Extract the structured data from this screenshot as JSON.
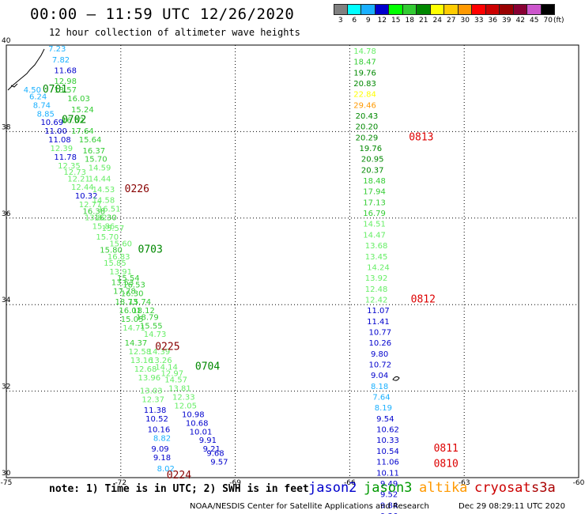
{
  "header": {
    "title": "00:00 – 11:59 UTC 12/26/2020",
    "subtitle": "12 hour collection of altimeter wave heights"
  },
  "legend": {
    "colors": [
      "#808080",
      "#00ffff",
      "#1ab0ff",
      "#0000cd",
      "#00ff00",
      "#33cc33",
      "#008800",
      "#ffff00",
      "#ffcc00",
      "#ff9900",
      "#ff0000",
      "#cc0000",
      "#990000",
      "#880033",
      "#cc55cc",
      "#000000"
    ],
    "labels": [
      "3",
      "6",
      "9",
      "12",
      "15",
      "18",
      "21",
      "24",
      "27",
      "30",
      "33",
      "36",
      "39",
      "42",
      "45",
      "70"
    ],
    "unit": "(ft)"
  },
  "map": {
    "lon_min": -75,
    "lon_max": -60,
    "lat_min": 30,
    "lat_max": 40,
    "x_ticks": [
      {
        "lon": -75,
        "label": "-75"
      },
      {
        "lon": -72,
        "label": "-72"
      },
      {
        "lon": -69,
        "label": "-69"
      },
      {
        "lon": -66,
        "label": "-66"
      },
      {
        "lon": -63,
        "label": "-63"
      },
      {
        "lon": -60,
        "label": "-60"
      }
    ],
    "y_ticks": [
      {
        "lat": 40,
        "label": "40"
      },
      {
        "lat": 38,
        "label": "38"
      },
      {
        "lat": 36,
        "label": "36"
      },
      {
        "lat": 34,
        "label": "34"
      },
      {
        "lat": 32,
        "label": "32"
      },
      {
        "lat": 30,
        "label": "30"
      }
    ],
    "time_labels": [
      {
        "text": "0701",
        "lon": -74.05,
        "lat": 38.9,
        "color": "#008800"
      },
      {
        "text": "0702",
        "lon": -73.55,
        "lat": 38.2,
        "color": "#008800"
      },
      {
        "text": "0226",
        "lon": -71.9,
        "lat": 36.6,
        "color": "#880000"
      },
      {
        "text": "0703",
        "lon": -71.55,
        "lat": 35.2,
        "color": "#008800"
      },
      {
        "text": "0225",
        "lon": -71.1,
        "lat": 32.95,
        "color": "#880000"
      },
      {
        "text": "0704",
        "lon": -70.05,
        "lat": 32.5,
        "color": "#008800"
      },
      {
        "text": "0224",
        "lon": -70.8,
        "lat": 29.98,
        "color": "#880000"
      },
      {
        "text": "0813",
        "lon": -64.45,
        "lat": 37.8,
        "color": "#dd0000"
      },
      {
        "text": "0812",
        "lon": -64.4,
        "lat": 34.05,
        "color": "#dd0000"
      },
      {
        "text": "0811",
        "lon": -63.8,
        "lat": 30.6,
        "color": "#dd0000"
      },
      {
        "text": "0810",
        "lon": -63.8,
        "lat": 30.25,
        "color": "#dd0000"
      }
    ]
  },
  "tracks": [
    {
      "name": "west",
      "points": [
        {
          "v": "7.23",
          "lon": -73.9,
          "lat": 39.85,
          "c": "#1ab0ff"
        },
        {
          "v": "7.82",
          "lon": -73.8,
          "lat": 39.6,
          "c": "#1ab0ff"
        },
        {
          "v": "11.68",
          "lon": -73.75,
          "lat": 39.35,
          "c": "#0000cd"
        },
        {
          "v": "12.98",
          "lon": -73.75,
          "lat": 39.1,
          "c": "#33cc33"
        },
        {
          "v": "4.50",
          "lon": -74.55,
          "lat": 38.9,
          "c": "#1ab0ff"
        },
        {
          "v": "6.24",
          "lon": -74.4,
          "lat": 38.75,
          "c": "#1ab0ff"
        },
        {
          "v": "13.57",
          "lon": -73.75,
          "lat": 38.9,
          "c": "#33cc33"
        },
        {
          "v": "16.03",
          "lon": -73.4,
          "lat": 38.7,
          "c": "#33cc33"
        },
        {
          "v": "8.74",
          "lon": -74.3,
          "lat": 38.55,
          "c": "#1ab0ff"
        },
        {
          "v": "8.85",
          "lon": -74.2,
          "lat": 38.35,
          "c": "#1ab0ff"
        },
        {
          "v": "15.24",
          "lon": -73.3,
          "lat": 38.45,
          "c": "#33cc33"
        },
        {
          "v": "10.69",
          "lon": -74.1,
          "lat": 38.15,
          "c": "#0000cd"
        },
        {
          "v": "16.52",
          "lon": -73.55,
          "lat": 38.2,
          "c": "#33cc33"
        },
        {
          "v": "11.00",
          "lon": -74.0,
          "lat": 37.95,
          "c": "#0000cd"
        },
        {
          "v": "17.64",
          "lon": -73.3,
          "lat": 37.95,
          "c": "#33cc33"
        },
        {
          "v": "11.08",
          "lon": -73.9,
          "lat": 37.75,
          "c": "#0000cd"
        },
        {
          "v": "15.64",
          "lon": -73.1,
          "lat": 37.75,
          "c": "#33cc33"
        },
        {
          "v": "12.39",
          "lon": -73.85,
          "lat": 37.55,
          "c": "#66ee66"
        },
        {
          "v": "16.37",
          "lon": -73.0,
          "lat": 37.5,
          "c": "#33cc33"
        },
        {
          "v": "11.78",
          "lon": -73.75,
          "lat": 37.35,
          "c": "#0000cd"
        },
        {
          "v": "15.70",
          "lon": -72.95,
          "lat": 37.3,
          "c": "#33cc33"
        },
        {
          "v": "12.35",
          "lon": -73.65,
          "lat": 37.15,
          "c": "#66ee66"
        },
        {
          "v": "14.59",
          "lon": -72.85,
          "lat": 37.1,
          "c": "#66ee66"
        },
        {
          "v": "12.73",
          "lon": -73.5,
          "lat": 37.0,
          "c": "#66ee66"
        },
        {
          "v": "12.21",
          "lon": -73.4,
          "lat": 36.85,
          "c": "#66ee66"
        },
        {
          "v": "14.44",
          "lon": -72.85,
          "lat": 36.85,
          "c": "#66ee66"
        },
        {
          "v": "12.44",
          "lon": -73.3,
          "lat": 36.65,
          "c": "#66ee66"
        },
        {
          "v": "14.53",
          "lon": -72.75,
          "lat": 36.6,
          "c": "#66ee66"
        },
        {
          "v": "10.32",
          "lon": -73.2,
          "lat": 36.45,
          "c": "#0000cd"
        },
        {
          "v": "14.58",
          "lon": -72.75,
          "lat": 36.35,
          "c": "#66ee66"
        },
        {
          "v": "12.77",
          "lon": -73.1,
          "lat": 36.25,
          "c": "#66ee66"
        },
        {
          "v": "16.51",
          "lon": -72.6,
          "lat": 36.15,
          "c": "#66ee66"
        },
        {
          "v": "16.38",
          "lon": -73.0,
          "lat": 36.1,
          "c": "#33cc33"
        },
        {
          "v": "16.30",
          "lon": -72.7,
          "lat": 35.95,
          "c": "#33cc33"
        },
        {
          "v": "13.82",
          "lon": -72.95,
          "lat": 35.95,
          "c": "#66ee66"
        },
        {
          "v": "15.86",
          "lon": -72.75,
          "lat": 35.75,
          "c": "#66ee66"
        },
        {
          "v": "15.57",
          "lon": -72.5,
          "lat": 35.7,
          "c": "#66ee66"
        },
        {
          "v": "15.70",
          "lon": -72.65,
          "lat": 35.5,
          "c": "#66ee66"
        },
        {
          "v": "15.60",
          "lon": -72.3,
          "lat": 35.35,
          "c": "#66ee66"
        },
        {
          "v": "15.80",
          "lon": -72.55,
          "lat": 35.2,
          "c": "#33cc33"
        },
        {
          "v": "16.83",
          "lon": -72.35,
          "lat": 35.05,
          "c": "#66ee66"
        },
        {
          "v": "15.85",
          "lon": -72.45,
          "lat": 34.9,
          "c": "#66ee66"
        },
        {
          "v": "13.91",
          "lon": -72.3,
          "lat": 34.7,
          "c": "#66ee66"
        },
        {
          "v": "15.54",
          "lon": -72.1,
          "lat": 34.55,
          "c": "#33cc33"
        },
        {
          "v": "13.53",
          "lon": -72.25,
          "lat": 34.45,
          "c": "#33cc33"
        },
        {
          "v": "16.53",
          "lon": -71.95,
          "lat": 34.4,
          "c": "#33cc33"
        },
        {
          "v": "17.78",
          "lon": -72.2,
          "lat": 34.25,
          "c": "#33cc33"
        },
        {
          "v": "16.30",
          "lon": -72.0,
          "lat": 34.2,
          "c": "#33cc33"
        },
        {
          "v": "18.73",
          "lon": -72.15,
          "lat": 34.0,
          "c": "#33cc33"
        },
        {
          "v": "15.74",
          "lon": -71.8,
          "lat": 34.0,
          "c": "#33cc33"
        },
        {
          "v": "16.01",
          "lon": -72.05,
          "lat": 33.8,
          "c": "#33cc33"
        },
        {
          "v": "18.12",
          "lon": -71.7,
          "lat": 33.8,
          "c": "#33cc33"
        },
        {
          "v": "15.05",
          "lon": -72.0,
          "lat": 33.6,
          "c": "#33cc33"
        },
        {
          "v": "18.79",
          "lon": -71.6,
          "lat": 33.65,
          "c": "#33cc33"
        },
        {
          "v": "14.71",
          "lon": -71.95,
          "lat": 33.4,
          "c": "#66ee66"
        },
        {
          "v": "15.55",
          "lon": -71.5,
          "lat": 33.45,
          "c": "#33cc33"
        },
        {
          "v": "14.73",
          "lon": -71.4,
          "lat": 33.25,
          "c": "#66ee66"
        },
        {
          "v": "14.37",
          "lon": -71.9,
          "lat": 33.05,
          "c": "#33cc33"
        },
        {
          "v": "12.58",
          "lon": -71.8,
          "lat": 32.85,
          "c": "#66ee66"
        },
        {
          "v": "14.39",
          "lon": -71.3,
          "lat": 32.85,
          "c": "#66ee66"
        },
        {
          "v": "13.16",
          "lon": -71.75,
          "lat": 32.65,
          "c": "#66ee66"
        },
        {
          "v": "13.26",
          "lon": -71.25,
          "lat": 32.65,
          "c": "#66ee66"
        },
        {
          "v": "14.14",
          "lon": -71.1,
          "lat": 32.5,
          "c": "#66ee66"
        },
        {
          "v": "12.68",
          "lon": -71.65,
          "lat": 32.45,
          "c": "#66ee66"
        },
        {
          "v": "12.97",
          "lon": -70.95,
          "lat": 32.35,
          "c": "#66ee66"
        },
        {
          "v": "13.96",
          "lon": -71.55,
          "lat": 32.25,
          "c": "#66ee66"
        },
        {
          "v": "14.57",
          "lon": -70.85,
          "lat": 32.2,
          "c": "#66ee66"
        },
        {
          "v": "13.03",
          "lon": -71.5,
          "lat": 31.95,
          "c": "#66ee66"
        },
        {
          "v": "13.81",
          "lon": -70.75,
          "lat": 32.0,
          "c": "#66ee66"
        },
        {
          "v": "12.37",
          "lon": -71.45,
          "lat": 31.75,
          "c": "#66ee66"
        },
        {
          "v": "12.33",
          "lon": -70.65,
          "lat": 31.8,
          "c": "#66ee66"
        },
        {
          "v": "12.05",
          "lon": -70.6,
          "lat": 31.6,
          "c": "#66ee66"
        },
        {
          "v": "11.38",
          "lon": -71.4,
          "lat": 31.5,
          "c": "#0000cd"
        },
        {
          "v": "10.98",
          "lon": -70.4,
          "lat": 31.4,
          "c": "#0000cd"
        },
        {
          "v": "10.52",
          "lon": -71.35,
          "lat": 31.3,
          "c": "#0000cd"
        },
        {
          "v": "10.68",
          "lon": -70.3,
          "lat": 31.2,
          "c": "#0000cd"
        },
        {
          "v": "10.16",
          "lon": -71.3,
          "lat": 31.05,
          "c": "#0000cd"
        },
        {
          "v": "10.01",
          "lon": -70.2,
          "lat": 31.0,
          "c": "#0000cd"
        },
        {
          "v": "8.82",
          "lon": -71.15,
          "lat": 30.85,
          "c": "#1ab0ff"
        },
        {
          "v": "9.91",
          "lon": -69.95,
          "lat": 30.8,
          "c": "#0000cd"
        },
        {
          "v": "9.09",
          "lon": -71.2,
          "lat": 30.6,
          "c": "#0000cd"
        },
        {
          "v": "9.21",
          "lon": -69.85,
          "lat": 30.6,
          "c": "#0000cd"
        },
        {
          "v": "9.18",
          "lon": -71.15,
          "lat": 30.4,
          "c": "#0000cd"
        },
        {
          "v": "9.68",
          "lon": -69.75,
          "lat": 30.5,
          "c": "#0000cd"
        },
        {
          "v": "9.57",
          "lon": -69.65,
          "lat": 30.3,
          "c": "#0000cd"
        },
        {
          "v": "8.02",
          "lon": -71.05,
          "lat": 30.15,
          "c": "#1ab0ff"
        }
      ]
    },
    {
      "name": "east",
      "points": [
        {
          "v": "14.78",
          "lon": -65.9,
          "lat": 39.8,
          "c": "#66ee66"
        },
        {
          "v": "18.47",
          "lon": -65.9,
          "lat": 39.55,
          "c": "#33cc33"
        },
        {
          "v": "19.76",
          "lon": -65.9,
          "lat": 39.3,
          "c": "#008800"
        },
        {
          "v": "20.83",
          "lon": -65.9,
          "lat": 39.05,
          "c": "#008800"
        },
        {
          "v": "22.84",
          "lon": -65.9,
          "lat": 38.8,
          "c": "#ffff00"
        },
        {
          "v": "29.46",
          "lon": -65.9,
          "lat": 38.55,
          "c": "#ff9900"
        },
        {
          "v": "20.43",
          "lon": -65.85,
          "lat": 38.3,
          "c": "#008800"
        },
        {
          "v": "20.20",
          "lon": -65.85,
          "lat": 38.05,
          "c": "#008800"
        },
        {
          "v": "20.29",
          "lon": -65.85,
          "lat": 37.8,
          "c": "#008800"
        },
        {
          "v": "19.76",
          "lon": -65.75,
          "lat": 37.55,
          "c": "#008800"
        },
        {
          "v": "20.95",
          "lon": -65.7,
          "lat": 37.3,
          "c": "#008800"
        },
        {
          "v": "20.37",
          "lon": -65.7,
          "lat": 37.05,
          "c": "#008800"
        },
        {
          "v": "18.48",
          "lon": -65.65,
          "lat": 36.8,
          "c": "#33cc33"
        },
        {
          "v": "17.94",
          "lon": -65.65,
          "lat": 36.55,
          "c": "#33cc33"
        },
        {
          "v": "17.13",
          "lon": -65.65,
          "lat": 36.3,
          "c": "#33cc33"
        },
        {
          "v": "16.79",
          "lon": -65.65,
          "lat": 36.05,
          "c": "#33cc33"
        },
        {
          "v": "14.51",
          "lon": -65.65,
          "lat": 35.8,
          "c": "#66ee66"
        },
        {
          "v": "14.47",
          "lon": -65.65,
          "lat": 35.55,
          "c": "#66ee66"
        },
        {
          "v": "13.68",
          "lon": -65.6,
          "lat": 35.3,
          "c": "#66ee66"
        },
        {
          "v": "13.45",
          "lon": -65.6,
          "lat": 35.05,
          "c": "#66ee66"
        },
        {
          "v": "14.24",
          "lon": -65.55,
          "lat": 34.8,
          "c": "#66ee66"
        },
        {
          "v": "13.92",
          "lon": -65.6,
          "lat": 34.55,
          "c": "#66ee66"
        },
        {
          "v": "12.48",
          "lon": -65.6,
          "lat": 34.3,
          "c": "#66ee66"
        },
        {
          "v": "12.42",
          "lon": -65.6,
          "lat": 34.05,
          "c": "#66ee66"
        },
        {
          "v": "11.07",
          "lon": -65.55,
          "lat": 33.8,
          "c": "#0000cd"
        },
        {
          "v": "11.41",
          "lon": -65.55,
          "lat": 33.55,
          "c": "#0000cd"
        },
        {
          "v": "10.77",
          "lon": -65.5,
          "lat": 33.3,
          "c": "#0000cd"
        },
        {
          "v": "10.26",
          "lon": -65.5,
          "lat": 33.05,
          "c": "#0000cd"
        },
        {
          "v": "9.80",
          "lon": -65.45,
          "lat": 32.8,
          "c": "#0000cd"
        },
        {
          "v": "10.72",
          "lon": -65.5,
          "lat": 32.55,
          "c": "#0000cd"
        },
        {
          "v": "9.04",
          "lon": -65.45,
          "lat": 32.3,
          "c": "#0000cd"
        },
        {
          "v": "8.18",
          "lon": -65.45,
          "lat": 32.05,
          "c": "#1ab0ff"
        },
        {
          "v": "7.64",
          "lon": -65.4,
          "lat": 31.8,
          "c": "#1ab0ff"
        },
        {
          "v": "8.19",
          "lon": -65.35,
          "lat": 31.55,
          "c": "#1ab0ff"
        },
        {
          "v": "9.54",
          "lon": -65.3,
          "lat": 31.3,
          "c": "#0000cd"
        },
        {
          "v": "10.62",
          "lon": -65.3,
          "lat": 31.05,
          "c": "#0000cd"
        },
        {
          "v": "10.33",
          "lon": -65.3,
          "lat": 30.8,
          "c": "#0000cd"
        },
        {
          "v": "10.54",
          "lon": -65.3,
          "lat": 30.55,
          "c": "#0000cd"
        },
        {
          "v": "11.06",
          "lon": -65.3,
          "lat": 30.3,
          "c": "#0000cd"
        },
        {
          "v": "10.11",
          "lon": -65.3,
          "lat": 30.05,
          "c": "#0000cd"
        },
        {
          "v": "9.49",
          "lon": -65.2,
          "lat": 29.8,
          "c": "#0000cd"
        },
        {
          "v": "9.52",
          "lon": -65.2,
          "lat": 29.55,
          "c": "#0000cd"
        },
        {
          "v": "9.84",
          "lon": -65.2,
          "lat": 29.3,
          "c": "#0000cd"
        },
        {
          "v": "9.36",
          "lon": -65.2,
          "lat": 29.05,
          "c": "#0000cd"
        }
      ]
    }
  ],
  "footer": {
    "note": "note: 1) Time is in UTC; 2) SWH is in feet",
    "satellites": [
      {
        "name": "jason2",
        "color": "#0000cc"
      },
      {
        "name": "jason3",
        "color": "#009900"
      },
      {
        "name": "altika",
        "color": "#ff9900"
      },
      {
        "name": "cryosat",
        "color": "#cc0000"
      },
      {
        "name": "s3a",
        "color": "#aa0000"
      }
    ],
    "credit": "NOAA/NESDIS Center for Satellite Applications and Research",
    "timestamp": "Dec 29 08:29:11 UTC 2020"
  }
}
